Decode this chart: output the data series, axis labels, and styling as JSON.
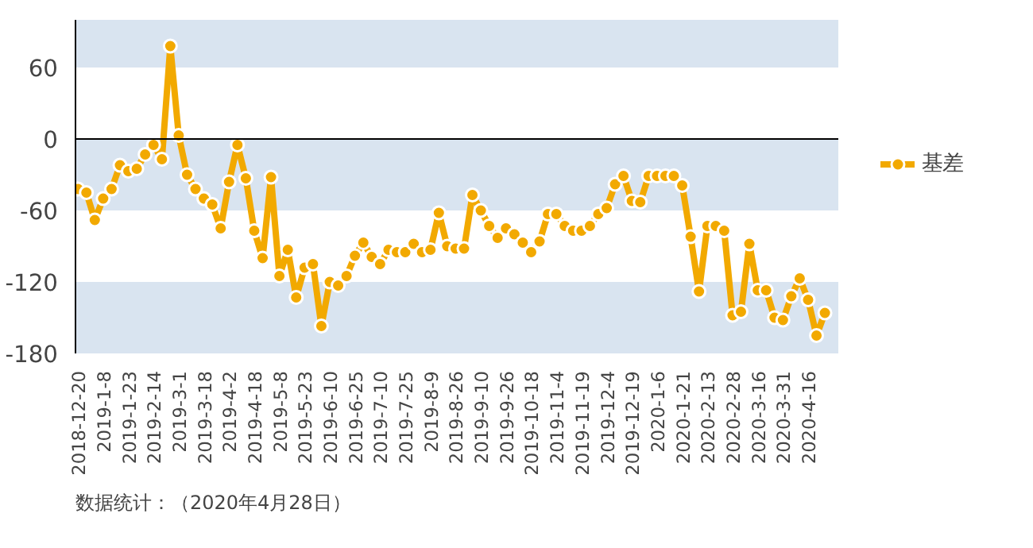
{
  "chart_data": {
    "type": "line",
    "categories": [
      "2018-12-20",
      null,
      null,
      "2019-1-8",
      null,
      null,
      "2019-1-23",
      null,
      null,
      "2019-2-14",
      null,
      null,
      "2019-3-1",
      null,
      null,
      "2019-3-18",
      null,
      null,
      "2019-4-2",
      null,
      null,
      "2019-4-18",
      null,
      null,
      "2019-5-8",
      null,
      null,
      "2019-5-23",
      null,
      null,
      "2019-6-10",
      null,
      null,
      "2019-6-25",
      null,
      null,
      "2019-7-10",
      null,
      null,
      "2019-7-25",
      null,
      null,
      "2019-8-9",
      null,
      null,
      "2019-8-26",
      null,
      null,
      "2019-9-10",
      null,
      null,
      "2019-9-26",
      null,
      null,
      "2019-10-18",
      null,
      null,
      "2019-11-4",
      null,
      null,
      "2019-11-19",
      null,
      null,
      "2019-12-4",
      null,
      null,
      "2019-12-19",
      null,
      null,
      "2020-1-6",
      null,
      null,
      "2020-1-21",
      null,
      null,
      "2020-2-13",
      null,
      null,
      "2020-2-28",
      null,
      null,
      "2020-3-16",
      null,
      null,
      "2020-3-31",
      null,
      null,
      "2020-4-16",
      null,
      null
    ],
    "series": [
      {
        "name": "基差",
        "color": "#f2a900",
        "values": [
          -42,
          -45,
          -68,
          -50,
          -42,
          -22,
          -27,
          -25,
          -13,
          -5,
          -17,
          78,
          3,
          -30,
          -42,
          -50,
          -55,
          -75,
          -36,
          -5,
          -33,
          -77,
          -100,
          -32,
          -115,
          -93,
          -133,
          -108,
          -105,
          -157,
          -120,
          -123,
          -115,
          -98,
          -87,
          -99,
          -105,
          -93,
          -95,
          -95,
          -88,
          -95,
          -93,
          -62,
          -90,
          -92,
          -92,
          -47,
          -60,
          -73,
          -83,
          -75,
          -80,
          -87,
          -95,
          -86,
          -63,
          -63,
          -73,
          -77,
          -77,
          -73,
          -63,
          -58,
          -38,
          -31,
          -52,
          -53,
          -31,
          -31,
          -31,
          -31,
          -39,
          -82,
          -128,
          -73,
          -73,
          -77,
          -148,
          -145,
          -88,
          -127,
          -127,
          -150,
          -152,
          -132,
          -117,
          -135,
          -165,
          -146
        ]
      }
    ],
    "ylim": [
      -180,
      100
    ],
    "yticks": [
      -180,
      -120,
      -60,
      0,
      60
    ],
    "bands": [
      {
        "axis": "y",
        "from": 60,
        "to": 100,
        "color": "#d9e4f0"
      },
      {
        "axis": "y",
        "from": -60,
        "to": 0,
        "color": "#d9e4f0"
      },
      {
        "axis": "y",
        "from": -180,
        "to": -120,
        "color": "#d9e4f0"
      }
    ],
    "ref_lines": [
      {
        "axis": "y",
        "value": 0,
        "color": "#000000"
      }
    ],
    "marker": "circle",
    "grid": false,
    "legend": "right",
    "annotations": [
      "数据统计：（2020年4月28日）"
    ]
  }
}
